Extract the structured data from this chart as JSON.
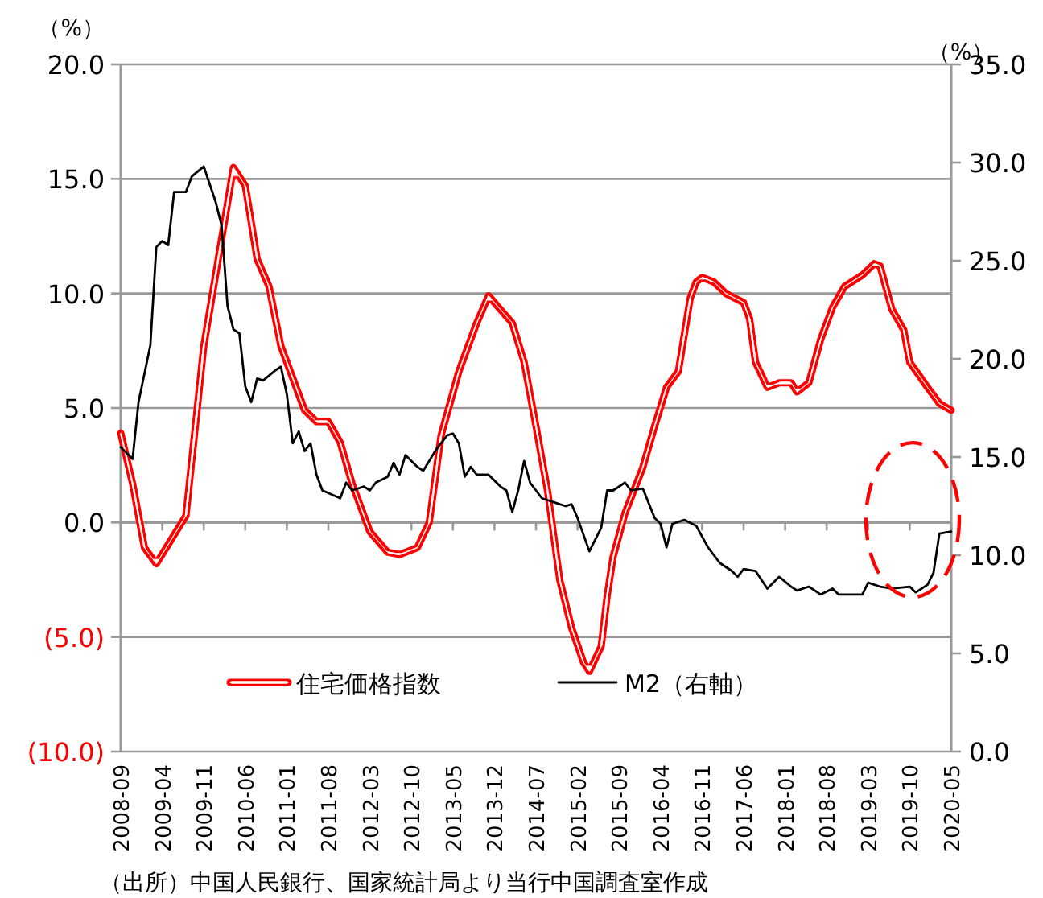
{
  "chart_data": {
    "type": "line",
    "xlim": [
      "2008-09",
      "2020-05"
    ],
    "xticks": [
      "2008-09",
      "2009-04",
      "2009-11",
      "2010-06",
      "2011-01",
      "2011-08",
      "2012-03",
      "2012-10",
      "2013-05",
      "2013-12",
      "2014-07",
      "2015-02",
      "2015-09",
      "2016-04",
      "2016-11",
      "2017-06",
      "2018-01",
      "2018-08",
      "2019-03",
      "2019-10",
      "2020-05"
    ],
    "ylabel": "（%）",
    "y2label": "（%）",
    "ylim": [
      -10,
      20
    ],
    "yticks": [
      {
        "value": 20,
        "label": "20.0"
      },
      {
        "value": 15,
        "label": "15.0"
      },
      {
        "value": 10,
        "label": "10.0"
      },
      {
        "value": 5,
        "label": "5.0"
      },
      {
        "value": 0,
        "label": "0.0"
      },
      {
        "value": -5,
        "label": "(5.0)"
      },
      {
        "value": -10,
        "label": "(10.0)"
      }
    ],
    "y2lim": [
      0,
      35
    ],
    "y2ticks": [
      {
        "value": 35,
        "label": "35.0"
      },
      {
        "value": 30,
        "label": "30.0"
      },
      {
        "value": 25,
        "label": "25.0"
      },
      {
        "value": 20,
        "label": "20.0"
      },
      {
        "value": 15,
        "label": "15.0"
      },
      {
        "value": 10,
        "label": "10.0"
      },
      {
        "value": 5,
        "label": "5.0"
      },
      {
        "value": 0,
        "label": "0.0"
      }
    ],
    "grid": "y",
    "legend": "bottom",
    "marker": "none",
    "line_style": "solid",
    "series": [
      {
        "name": "住宅価格指数",
        "color": "#ff0000",
        "x": [
          "2008-09",
          "2008-11",
          "2009-01",
          "2009-03",
          "2009-08",
          "2009-11",
          "2010-04",
          "2010-06",
          "2010-08",
          "2010-10",
          "2010-12",
          "2011-04",
          "2011-06",
          "2011-08",
          "2011-10",
          "2011-12",
          "2012-03",
          "2012-06",
          "2012-08",
          "2012-11",
          "2013-01",
          "2013-03",
          "2013-06",
          "2013-09",
          "2013-11",
          "2014-03",
          "2014-05",
          "2014-07",
          "2014-09",
          "2014-11",
          "2015-01",
          "2015-03",
          "2015-04",
          "2015-06",
          "2015-07",
          "2015-08",
          "2015-10",
          "2016-01",
          "2016-03",
          "2016-05",
          "2016-07",
          "2016-09",
          "2016-10",
          "2016-11",
          "2017-01",
          "2017-03",
          "2017-06",
          "2017-07",
          "2017-08",
          "2017-10",
          "2017-12",
          "2018-02",
          "2018-03",
          "2018-05",
          "2018-07",
          "2018-09",
          "2018-11",
          "2019-02",
          "2019-04",
          "2019-05",
          "2019-07",
          "2019-09",
          "2019-10",
          "2020-01",
          "2020-03",
          "2020-05"
        ],
        "values": [
          3.9,
          1.7,
          -1.1,
          -1.8,
          0.3,
          7.7,
          15.5,
          14.7,
          11.5,
          10.3,
          7.7,
          4.9,
          4.4,
          4.4,
          3.5,
          1.7,
          -0.4,
          -1.3,
          -1.4,
          -1.1,
          0,
          3.8,
          6.6,
          8.7,
          9.9,
          8.7,
          7.0,
          4.2,
          1.3,
          -2.5,
          -4.6,
          -6.1,
          -6.5,
          -5.4,
          -3.2,
          -1.5,
          0.4,
          2.4,
          4.2,
          5.9,
          6.6,
          9.8,
          10.5,
          10.7,
          10.5,
          10.0,
          9.6,
          8.9,
          7.0,
          5.9,
          6.1,
          6.1,
          5.7,
          6.1,
          8.0,
          9.4,
          10.3,
          10.8,
          11.3,
          11.2,
          9.3,
          8.4,
          7.0,
          5.9,
          5.2,
          4.9
        ]
      },
      {
        "name": "M2（右軸）",
        "color": "#000000",
        "axis": "y2",
        "x": [
          "2008-09",
          "2008-11",
          "2008-12",
          "2009-02",
          "2009-03",
          "2009-04",
          "2009-05",
          "2009-06",
          "2009-08",
          "2009-09",
          "2009-11",
          "2010-01",
          "2010-02",
          "2010-03",
          "2010-04",
          "2010-05",
          "2010-06",
          "2010-07",
          "2010-08",
          "2010-09",
          "2010-11",
          "2010-12",
          "2011-01",
          "2011-02",
          "2011-03",
          "2011-04",
          "2011-05",
          "2011-06",
          "2011-07",
          "2011-10",
          "2011-11",
          "2011-12",
          "2012-02",
          "2012-03",
          "2012-04",
          "2012-06",
          "2012-07",
          "2012-08",
          "2012-09",
          "2012-11",
          "2012-12",
          "2013-02",
          "2013-04",
          "2013-05",
          "2013-06",
          "2013-07",
          "2013-08",
          "2013-09",
          "2013-11",
          "2014-01",
          "2014-02",
          "2014-03",
          "2014-04",
          "2014-05",
          "2014-06",
          "2014-08",
          "2014-10",
          "2014-12",
          "2015-01",
          "2015-02",
          "2015-04",
          "2015-06",
          "2015-07",
          "2015-08",
          "2015-10",
          "2015-11",
          "2016-01",
          "2016-03",
          "2016-04",
          "2016-05",
          "2016-06",
          "2016-08",
          "2016-10",
          "2016-12",
          "2017-02",
          "2017-04",
          "2017-05",
          "2017-06",
          "2017-08",
          "2017-10",
          "2017-12",
          "2018-02",
          "2018-03",
          "2018-05",
          "2018-07",
          "2018-09",
          "2018-10",
          "2018-12",
          "2019-02",
          "2019-03",
          "2019-05",
          "2019-07",
          "2019-10",
          "2019-11",
          "2020-01",
          "2020-02",
          "2020-03",
          "2020-05"
        ],
        "values": [
          15.5,
          14.9,
          17.8,
          20.7,
          25.7,
          26.0,
          25.8,
          28.5,
          28.5,
          29.3,
          29.8,
          28.0,
          26.8,
          22.7,
          21.5,
          21.3,
          18.6,
          17.8,
          19.0,
          18.9,
          19.4,
          19.6,
          18.2,
          15.7,
          16.3,
          15.3,
          15.7,
          14.1,
          13.3,
          12.9,
          13.7,
          13.3,
          13.5,
          13.3,
          13.7,
          14.0,
          14.7,
          14.1,
          15.1,
          14.5,
          14.3,
          15.3,
          16.1,
          16.2,
          15.7,
          14.0,
          14.5,
          14.1,
          14.1,
          13.5,
          13.3,
          12.2,
          13.3,
          14.8,
          13.7,
          12.9,
          12.7,
          12.5,
          12.6,
          11.9,
          10.2,
          11.4,
          13.3,
          13.3,
          13.7,
          13.3,
          13.4,
          11.9,
          11.6,
          10.4,
          11.6,
          11.8,
          11.5,
          10.4,
          9.6,
          9.2,
          8.9,
          9.3,
          9.2,
          8.3,
          8.9,
          8.4,
          8.2,
          8.4,
          8.0,
          8.3,
          8.0,
          8.0,
          8.0,
          8.6,
          8.4,
          8.3,
          8.4,
          8.1,
          8.5,
          9.1,
          11.1,
          11.2
        ]
      }
    ],
    "annotations": [
      "（出所）中国人民銀行、国家統計局より当行中国調査室作成"
    ]
  }
}
